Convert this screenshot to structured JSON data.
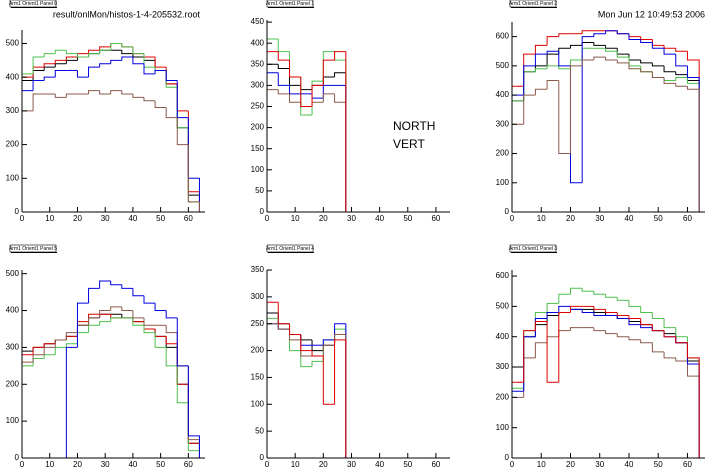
{
  "chart_data": [
    {
      "type": "histogram",
      "title": "Arm1 Orient1 Panel 0",
      "annotations": [
        "result/onlMon/histos-1-4-205532.root"
      ],
      "bins": [
        0,
        4,
        8,
        12,
        16,
        20,
        24,
        28,
        32,
        36,
        40,
        44,
        48,
        52,
        56,
        60,
        64
      ],
      "xlim": [
        0,
        66
      ],
      "xticks": [
        0,
        10,
        20,
        30,
        40,
        50,
        60
      ],
      "ylim": [
        0,
        540
      ],
      "yticks": [
        0,
        100,
        200,
        300,
        400,
        500
      ],
      "series": [
        {
          "name": "black",
          "color": "#000000",
          "values": [
            390,
            420,
            430,
            440,
            450,
            460,
            470,
            480,
            480,
            470,
            460,
            450,
            420,
            380,
            250,
            50
          ]
        },
        {
          "name": "red",
          "color": "#e00000",
          "values": [
            400,
            430,
            440,
            450,
            460,
            470,
            480,
            490,
            500,
            490,
            470,
            460,
            430,
            380,
            300,
            60
          ]
        },
        {
          "name": "green",
          "color": "#4fc04f",
          "values": [
            410,
            460,
            470,
            480,
            470,
            460,
            470,
            480,
            500,
            490,
            470,
            430,
            420,
            370,
            250,
            30
          ]
        },
        {
          "name": "blue",
          "color": "#0000e0",
          "values": [
            360,
            390,
            400,
            420,
            420,
            400,
            430,
            440,
            450,
            460,
            440,
            410,
            420,
            390,
            280,
            100
          ]
        },
        {
          "name": "brown",
          "color": "#8b5a4a",
          "values": [
            300,
            350,
            350,
            340,
            350,
            350,
            360,
            350,
            360,
            350,
            340,
            330,
            310,
            280,
            200,
            30
          ]
        }
      ]
    },
    {
      "type": "histogram",
      "title": "Arm1 Orient1 Panel 1",
      "annotations": [
        "NORTH",
        "VERT"
      ],
      "bins": [
        0,
        4,
        8,
        12,
        16,
        20,
        24,
        28,
        32,
        36,
        40,
        44,
        48,
        52,
        56,
        60,
        64
      ],
      "xlim": [
        0,
        65
      ],
      "xticks": [
        0,
        10,
        20,
        30,
        40,
        50,
        60
      ],
      "ylim": [
        0,
        455
      ],
      "yticks": [
        0,
        50,
        100,
        150,
        200,
        250,
        300,
        350,
        400,
        450
      ],
      "series": [
        {
          "name": "black",
          "color": "#000000",
          "values": [
            350,
            340,
            300,
            290,
            300,
            320,
            330,
            0,
            0,
            0,
            0,
            0,
            0,
            0,
            0,
            0
          ]
        },
        {
          "name": "green",
          "color": "#4fc04f",
          "values": [
            410,
            380,
            320,
            230,
            310,
            380,
            360,
            0,
            0,
            0,
            0,
            0,
            0,
            0,
            0,
            0
          ]
        },
        {
          "name": "blue",
          "color": "#0000e0",
          "values": [
            330,
            300,
            280,
            280,
            270,
            300,
            300,
            0,
            0,
            0,
            0,
            0,
            0,
            0,
            0,
            0
          ]
        },
        {
          "name": "brown",
          "color": "#8b5a4a",
          "values": [
            290,
            280,
            260,
            250,
            260,
            280,
            260,
            0,
            0,
            0,
            0,
            0,
            0,
            0,
            0,
            0
          ]
        },
        {
          "name": "red",
          "color": "#e00000",
          "values": [
            380,
            360,
            320,
            250,
            300,
            360,
            380,
            0,
            0,
            0,
            0,
            0,
            0,
            0,
            0,
            0
          ]
        }
      ]
    },
    {
      "type": "histogram",
      "title": "Arm1 Orient1 Panel 2",
      "annotations": [
        "Mon Jun 12 10:49:53 2006"
      ],
      "bins": [
        0,
        4,
        8,
        12,
        16,
        20,
        24,
        28,
        32,
        36,
        40,
        44,
        48,
        52,
        56,
        60,
        64
      ],
      "xlim": [
        0,
        66
      ],
      "xticks": [
        0,
        10,
        20,
        30,
        40,
        50,
        60
      ],
      "ylim": [
        0,
        650
      ],
      "yticks": [
        0,
        100,
        200,
        300,
        400,
        500,
        600
      ],
      "series": [
        {
          "name": "black",
          "color": "#000000",
          "values": [
            380,
            480,
            500,
            540,
            560,
            570,
            580,
            570,
            560,
            540,
            520,
            510,
            500,
            480,
            470,
            450
          ]
        },
        {
          "name": "red",
          "color": "#e00000",
          "values": [
            430,
            540,
            570,
            600,
            610,
            610,
            620,
            620,
            620,
            610,
            600,
            590,
            570,
            560,
            550,
            520
          ]
        },
        {
          "name": "green",
          "color": "#4fc04f",
          "values": [
            380,
            480,
            490,
            500,
            490,
            520,
            560,
            560,
            550,
            530,
            500,
            480,
            460,
            450,
            460,
            440
          ]
        },
        {
          "name": "blue",
          "color": "#0000e0",
          "values": [
            400,
            500,
            540,
            550,
            500,
            100,
            600,
            610,
            620,
            610,
            590,
            580,
            560,
            540,
            500,
            460
          ]
        },
        {
          "name": "brown",
          "color": "#8b5a4a",
          "values": [
            300,
            400,
            420,
            450,
            200,
            500,
            520,
            530,
            520,
            510,
            490,
            480,
            460,
            440,
            430,
            420
          ]
        }
      ]
    },
    {
      "type": "histogram",
      "title": "Arm1 Orient1 Panel 5",
      "bins": [
        0,
        4,
        8,
        12,
        16,
        20,
        24,
        28,
        32,
        36,
        40,
        44,
        48,
        52,
        56,
        60,
        64
      ],
      "xlim": [
        0,
        66
      ],
      "xticks": [
        0,
        10,
        20,
        30,
        40,
        50,
        60
      ],
      "ylim": [
        0,
        510
      ],
      "yticks": [
        0,
        100,
        200,
        300,
        400,
        500
      ],
      "series": [
        {
          "name": "black",
          "color": "#000000",
          "values": [
            290,
            300,
            310,
            320,
            330,
            360,
            380,
            390,
            390,
            380,
            370,
            350,
            330,
            300,
            200,
            40
          ]
        },
        {
          "name": "red",
          "color": "#e00000",
          "values": [
            280,
            300,
            310,
            320,
            330,
            370,
            390,
            390,
            380,
            380,
            370,
            350,
            330,
            310,
            200,
            40
          ]
        },
        {
          "name": "green",
          "color": "#4fc04f",
          "values": [
            250,
            270,
            280,
            300,
            310,
            340,
            360,
            370,
            380,
            380,
            360,
            340,
            300,
            250,
            150,
            20
          ]
        },
        {
          "name": "brown",
          "color": "#8b5a4a",
          "values": [
            260,
            280,
            300,
            320,
            340,
            360,
            380,
            400,
            410,
            400,
            380,
            360,
            360,
            340,
            250,
            50
          ]
        },
        {
          "name": "blue",
          "color": "#0000e0",
          "values": [
            0,
            0,
            0,
            0,
            300,
            420,
            460,
            480,
            470,
            460,
            440,
            420,
            400,
            380,
            250,
            60
          ]
        }
      ]
    },
    {
      "type": "histogram",
      "title": "Arm1 Orient1 Panel 4",
      "bins": [
        0,
        4,
        8,
        12,
        16,
        20,
        24,
        28,
        32,
        36,
        40,
        44,
        48,
        52,
        56,
        60,
        64
      ],
      "xlim": [
        0,
        65
      ],
      "xticks": [
        0,
        10,
        20,
        30,
        40,
        50,
        60
      ],
      "ylim": [
        0,
        350
      ],
      "yticks": [
        0,
        50,
        100,
        150,
        200,
        250,
        300,
        350
      ],
      "series": [
        {
          "name": "black",
          "color": "#000000",
          "values": [
            270,
            250,
            230,
            220,
            200,
            210,
            230,
            0,
            0,
            0,
            0,
            0,
            0,
            0,
            0,
            0
          ]
        },
        {
          "name": "green",
          "color": "#4fc04f",
          "values": [
            260,
            240,
            200,
            170,
            180,
            220,
            240,
            0,
            0,
            0,
            0,
            0,
            0,
            0,
            0,
            0
          ]
        },
        {
          "name": "blue",
          "color": "#0000e0",
          "values": [
            250,
            240,
            230,
            210,
            210,
            220,
            250,
            0,
            0,
            0,
            0,
            0,
            0,
            0,
            0,
            0
          ]
        },
        {
          "name": "brown",
          "color": "#8b5a4a",
          "values": [
            250,
            240,
            220,
            190,
            190,
            210,
            230,
            0,
            0,
            0,
            0,
            0,
            0,
            0,
            0,
            0
          ]
        },
        {
          "name": "red",
          "color": "#e00000",
          "values": [
            290,
            250,
            230,
            200,
            190,
            100,
            220,
            0,
            0,
            0,
            0,
            0,
            0,
            0,
            0,
            0
          ]
        }
      ]
    },
    {
      "type": "histogram",
      "title": "Arm1 Orient1 Panel 3",
      "bins": [
        0,
        4,
        8,
        12,
        16,
        20,
        24,
        28,
        32,
        36,
        40,
        44,
        48,
        52,
        56,
        60,
        64
      ],
      "xlim": [
        0,
        66
      ],
      "xticks": [
        0,
        10,
        20,
        30,
        40,
        50,
        60
      ],
      "ylim": [
        0,
        620
      ],
      "yticks": [
        0,
        100,
        200,
        300,
        400,
        500,
        600
      ],
      "series": [
        {
          "name": "black",
          "color": "#000000",
          "values": [
            300,
            400,
            440,
            470,
            480,
            490,
            490,
            480,
            470,
            460,
            450,
            440,
            420,
            410,
            380,
            320
          ]
        },
        {
          "name": "green",
          "color": "#4fc04f",
          "values": [
            230,
            420,
            480,
            510,
            540,
            560,
            550,
            540,
            530,
            520,
            500,
            480,
            460,
            430,
            400,
            330
          ]
        },
        {
          "name": "brown",
          "color": "#8b5a4a",
          "values": [
            200,
            330,
            380,
            400,
            420,
            430,
            430,
            420,
            410,
            400,
            390,
            380,
            350,
            330,
            320,
            270
          ]
        },
        {
          "name": "blue",
          "color": "#0000e0",
          "values": [
            220,
            400,
            460,
            480,
            500,
            490,
            480,
            470,
            470,
            460,
            440,
            430,
            420,
            400,
            380,
            310
          ]
        },
        {
          "name": "red",
          "color": "#e00000",
          "values": [
            250,
            420,
            450,
            250,
            480,
            500,
            500,
            490,
            480,
            470,
            460,
            440,
            420,
            400,
            380,
            330
          ]
        }
      ]
    }
  ]
}
